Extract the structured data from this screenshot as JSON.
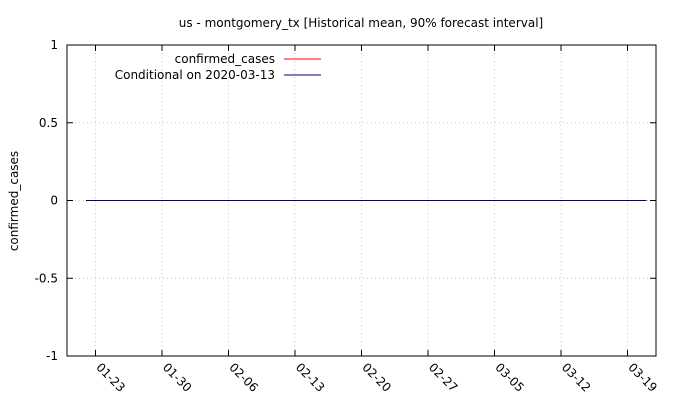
{
  "chart_data": {
    "type": "line",
    "title": "us - montgomery_tx [Historical mean, 90% forecast interval]",
    "xlabel": "",
    "ylabel": "confirmed_cases",
    "ylim": [
      -1,
      1
    ],
    "y_ticks": [
      "1",
      "0.5",
      "0",
      "-0.5",
      "-1"
    ],
    "y_tick_values": [
      1,
      0.5,
      0,
      -0.5,
      -1
    ],
    "x_ticks": [
      "01-23",
      "01-30",
      "02-06",
      "02-13",
      "02-20",
      "02-27",
      "03-05",
      "03-12",
      "03-19"
    ],
    "x_tick_dates": [
      "2020-01-23",
      "2020-01-30",
      "2020-02-06",
      "2020-02-13",
      "2020-02-20",
      "2020-02-27",
      "2020-03-05",
      "2020-03-12",
      "2020-03-19"
    ],
    "xlim": [
      "2020-01-20",
      "2020-03-22"
    ],
    "grid": true,
    "legend_position": "top-left",
    "series": [
      {
        "name": "confirmed_cases",
        "color": "#ff0000",
        "x": [
          "2020-01-22",
          "2020-03-13"
        ],
        "y": [
          0,
          0
        ]
      },
      {
        "name": "Conditional on 2020-03-13",
        "color": "#000080",
        "x": [
          "2020-01-22",
          "2020-03-21"
        ],
        "y": [
          0,
          0
        ]
      }
    ]
  }
}
